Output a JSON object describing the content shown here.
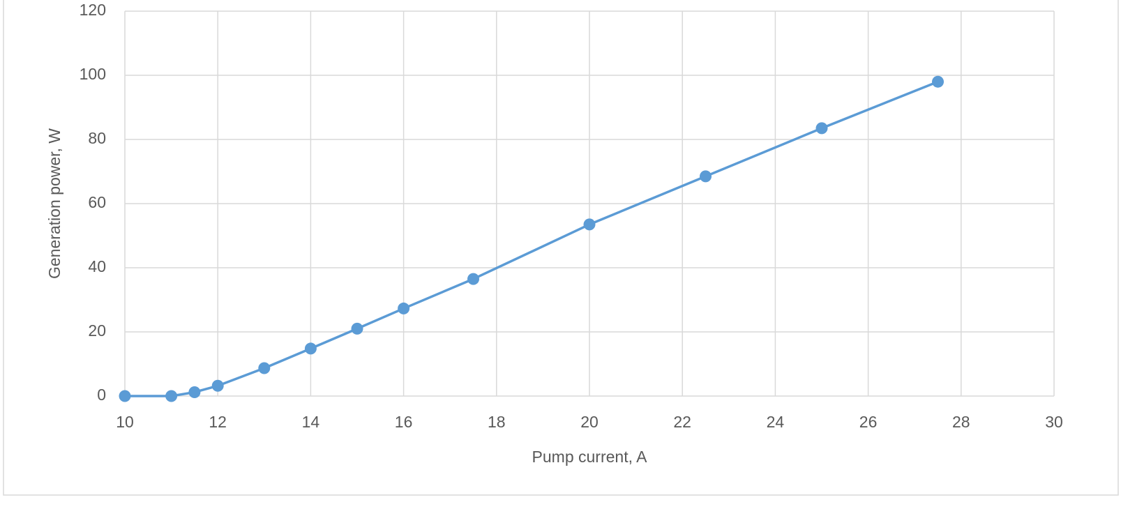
{
  "chart_data": {
    "type": "line",
    "x_label": "Pump current, A",
    "y_label": "Generation power, W",
    "x": [
      10,
      11,
      11.5,
      12,
      13,
      14,
      15,
      16,
      17.5,
      20,
      22.5,
      25,
      27.5
    ],
    "series": [
      {
        "name": "Generation power",
        "color": "#5b9bd5",
        "values": [
          0,
          0,
          1.2,
          3.2,
          8.7,
          14.8,
          21,
          27.3,
          36.5,
          53.5,
          68.5,
          83.5,
          98
        ]
      }
    ],
    "xlim": [
      10,
      30
    ],
    "xticks": [
      10,
      12,
      14,
      16,
      18,
      20,
      22,
      24,
      26,
      28,
      30
    ],
    "ylim": [
      0,
      120
    ],
    "yticks": [
      0,
      20,
      40,
      60,
      80,
      100,
      120
    ],
    "grid": true,
    "markers": true
  }
}
